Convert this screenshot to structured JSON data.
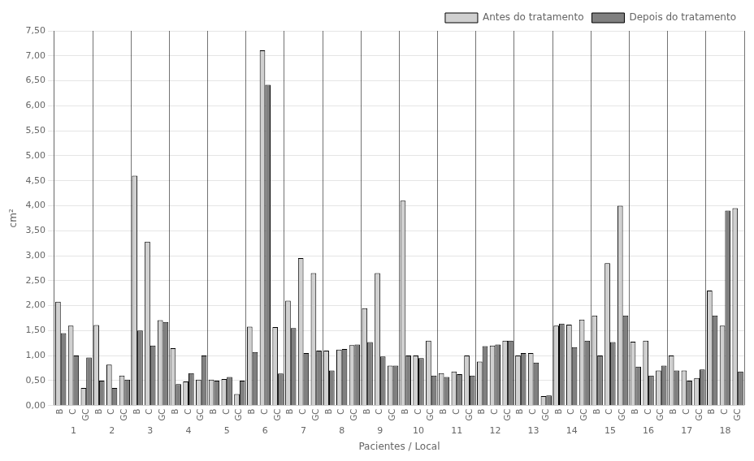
{
  "chart_data": {
    "type": "bar",
    "xlabel": "Pacientes / Local",
    "ylabel": "cm²",
    "categories": [
      "B",
      "C",
      "GC",
      "B",
      "C",
      "GC",
      "B",
      "C",
      "GC",
      "B",
      "C",
      "GC",
      "B",
      "C",
      "GC",
      "B",
      "C",
      "GC",
      "B",
      "C",
      "GC",
      "B",
      "C",
      "GC",
      "B",
      "C",
      "GC",
      "B",
      "C",
      "GC",
      "B",
      "C",
      "GC",
      "B",
      "C",
      "GC",
      "B",
      "C",
      "GC",
      "B",
      "C",
      "GC",
      "B",
      "C",
      "GC",
      "B",
      "C",
      "GC",
      "B",
      "C",
      "GC",
      "B",
      "C",
      "GC"
    ],
    "category_groups": [
      1,
      1,
      1,
      2,
      2,
      2,
      3,
      3,
      3,
      4,
      4,
      4,
      5,
      5,
      5,
      6,
      6,
      6,
      7,
      7,
      7,
      8,
      8,
      8,
      9,
      9,
      9,
      10,
      10,
      10,
      11,
      11,
      11,
      12,
      12,
      12,
      13,
      13,
      13,
      14,
      14,
      14,
      15,
      15,
      15,
      16,
      16,
      16,
      17,
      17,
      17,
      18,
      18,
      18
    ],
    "series": [
      {
        "name": "Antes do tratamento",
        "color": "#d0d0d0",
        "values": [
          2.08,
          1.6,
          0.35,
          1.61,
          0.82,
          0.6,
          4.6,
          3.28,
          1.71,
          1.15,
          0.48,
          0.52,
          0.52,
          0.53,
          0.23,
          1.58,
          7.11,
          1.57,
          2.1,
          2.95,
          2.65,
          1.1,
          1.12,
          1.21,
          1.95,
          2.65,
          0.8,
          4.1,
          1.0,
          1.3,
          0.65,
          0.68,
          1.0,
          0.88,
          1.2,
          1.3,
          1.0,
          1.05,
          0.19,
          1.6,
          1.62,
          1.72,
          1.8,
          2.85,
          4.0,
          1.28,
          1.3,
          0.7,
          1.0,
          0.7,
          0.55,
          2.3,
          1.6,
          3.95
        ]
      },
      {
        "name": "Depois do tratamento",
        "color": "#808080",
        "values": [
          1.45,
          1.0,
          0.96,
          0.5,
          0.35,
          0.52,
          1.5,
          1.2,
          1.67,
          0.43,
          0.65,
          1.0,
          0.5,
          0.57,
          0.5,
          1.07,
          6.42,
          0.64,
          1.55,
          1.05,
          1.1,
          0.7,
          1.13,
          1.22,
          1.27,
          0.98,
          0.8,
          1.0,
          0.95,
          0.6,
          0.57,
          0.63,
          0.6,
          1.19,
          1.22,
          1.3,
          1.05,
          0.86,
          0.2,
          1.64,
          1.17,
          1.3,
          1.0,
          1.27,
          1.8,
          0.78,
          0.6,
          0.8,
          0.7,
          0.5,
          0.72,
          1.8,
          3.9,
          0.68
        ]
      }
    ],
    "ylim": [
      0.0,
      7.5
    ],
    "yticks": [
      {
        "value": 0.0,
        "label": "0,00"
      },
      {
        "value": 0.5,
        "label": "0,50"
      },
      {
        "value": 1.0,
        "label": "1,00"
      },
      {
        "value": 1.5,
        "label": "1,50"
      },
      {
        "value": 2.0,
        "label": "2,00"
      },
      {
        "value": 2.5,
        "label": "2,50"
      },
      {
        "value": 3.0,
        "label": "3,00"
      },
      {
        "value": 3.5,
        "label": "3,50"
      },
      {
        "value": 4.0,
        "label": "4,00"
      },
      {
        "value": 4.5,
        "label": "4,50"
      },
      {
        "value": 5.0,
        "label": "5,00"
      },
      {
        "value": 5.5,
        "label": "5,50"
      },
      {
        "value": 6.0,
        "label": "6,00"
      },
      {
        "value": 6.5,
        "label": "6,50"
      },
      {
        "value": 7.0,
        "label": "7,00"
      },
      {
        "value": 7.5,
        "label": "7,50"
      }
    ],
    "grid": true,
    "legend": "upper right"
  }
}
